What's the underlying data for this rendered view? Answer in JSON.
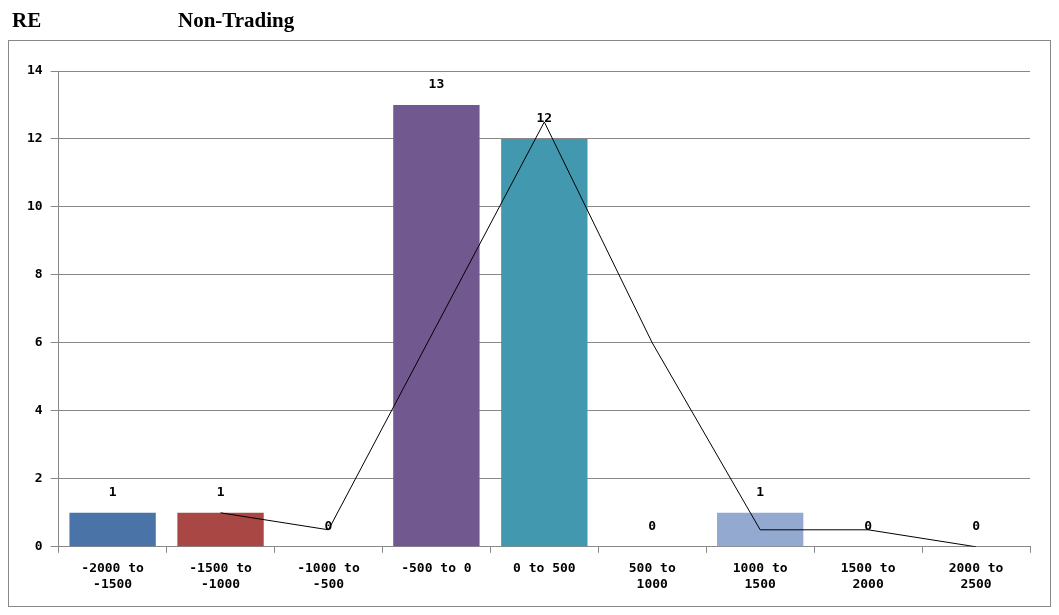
{
  "chart_data": {
    "type": "bar",
    "title": "RE",
    "subtitle": "Non-Trading",
    "categories": [
      "-2000 to -1500",
      "-1500 to -1000",
      "-1000 to -500",
      "-500 to 0",
      "0 to 500",
      "500 to 1000",
      "1000 to 1500",
      "1500 to 2000",
      "2000 to 2500"
    ],
    "series": [
      {
        "values": [
          1,
          1,
          0,
          13,
          12,
          0,
          1,
          0,
          0
        ],
        "value_labels": [
          "1",
          "1",
          "0",
          "13",
          "12",
          "0",
          "1",
          "0",
          "0"
        ],
        "colors": [
          "#4a73a8",
          "#a84744",
          "#89a54e",
          "#71588f",
          "#4198af",
          "#db843d",
          "#93a9cf",
          "#d19392",
          "#b9cd96"
        ]
      },
      {
        "type": "line",
        "color": "#000000",
        "values": [
          null,
          1,
          0.5,
          6.5,
          12.5,
          6,
          0.5,
          0.5,
          0
        ]
      }
    ],
    "ylim": [
      0,
      14
    ],
    "yticks": [
      0,
      2,
      4,
      6,
      8,
      10,
      12,
      14
    ],
    "grid": "y",
    "legend": false,
    "marker": "none",
    "line_style": "solid"
  }
}
